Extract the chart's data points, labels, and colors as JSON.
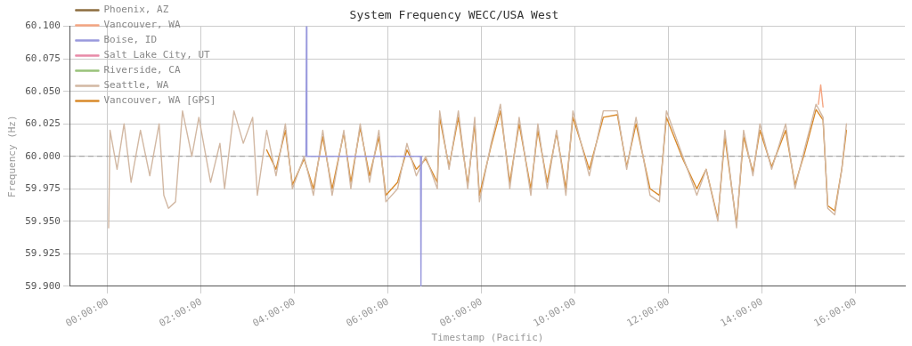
{
  "chart_data": {
    "type": "line",
    "title": "System Frequency WECC/USA West",
    "xlabel": "Timestamp (Pacific)",
    "ylabel": "Frequency (Hz)",
    "xlim": [
      -0.8,
      17.05
    ],
    "ylim": [
      59.9,
      60.1
    ],
    "xticks": [
      {
        "value": 0,
        "label": "00:00:00"
      },
      {
        "value": 2,
        "label": "02:00:00"
      },
      {
        "value": 4,
        "label": "04:00:00"
      },
      {
        "value": 6,
        "label": "06:00:00"
      },
      {
        "value": 8,
        "label": "08:00:00"
      },
      {
        "value": 10,
        "label": "10:00:00"
      },
      {
        "value": 12,
        "label": "12:00:00"
      },
      {
        "value": 14,
        "label": "14:00:00"
      },
      {
        "value": 16,
        "label": "16:00:00"
      }
    ],
    "yticks": [
      {
        "value": 59.9,
        "label": "59.900"
      },
      {
        "value": 59.925,
        "label": "59.925"
      },
      {
        "value": 59.95,
        "label": "59.950"
      },
      {
        "value": 59.975,
        "label": "59.975"
      },
      {
        "value": 60,
        "label": "60.000"
      },
      {
        "value": 60.025,
        "label": "60.025"
      },
      {
        "value": 60.05,
        "label": "60.050"
      },
      {
        "value": 60.075,
        "label": "60.075"
      },
      {
        "value": 60.1,
        "label": "60.100"
      }
    ],
    "grid": true,
    "legend": "top left",
    "marker": "none",
    "line_style": "solid",
    "ref_lines": [
      {
        "axis": "y",
        "value": 60,
        "color": "#999999",
        "line_style": "dashed"
      }
    ],
    "series": [
      {
        "name": "Phoenix, AZ",
        "color": "#8c6d3f"
      },
      {
        "name": "Vancouver, WA",
        "color": "#f4a582",
        "x": [
          15.2,
          15.25,
          15.3
        ],
        "values": [
          60.04,
          60.055,
          60.038
        ]
      },
      {
        "name": "Boise, ID",
        "color": "#9999dd",
        "x": [
          4.24,
          4.25,
          4.26,
          6.69,
          6.7,
          6.71
        ],
        "values": [
          60.0,
          60.1,
          60.0,
          60.0,
          59.9,
          60.0
        ]
      },
      {
        "name": "Salt Lake City, UT",
        "color": "#e88aa8"
      },
      {
        "name": "Riverside, CA",
        "color": "#99c27a"
      },
      {
        "name": "Seattle, WA",
        "color": "#d2b8a3",
        "x": [
          0.02,
          0.05,
          0.2,
          0.35,
          0.5,
          0.7,
          0.9,
          1.1,
          1.2,
          1.3,
          1.45,
          1.6,
          1.8,
          1.95,
          2.2,
          2.4,
          2.5,
          2.7,
          2.9,
          3.1,
          3.2,
          3.4,
          3.6,
          3.8,
          3.95,
          4.2,
          4.4,
          4.6,
          4.8,
          5.05,
          5.2,
          5.4,
          5.6,
          5.8,
          5.95,
          6.2,
          6.4,
          6.6,
          6.8,
          7.05,
          7.1,
          7.3,
          7.5,
          7.7,
          7.85,
          7.95,
          8.2,
          8.4,
          8.6,
          8.8,
          9.05,
          9.2,
          9.4,
          9.6,
          9.8,
          9.95,
          10.3,
          10.6,
          10.9,
          11.1,
          11.3,
          11.6,
          11.8,
          11.95,
          12.3,
          12.6,
          12.8,
          13.05,
          13.2,
          13.45,
          13.6,
          13.8,
          13.95,
          14.2,
          14.5,
          14.7,
          14.9,
          15.15,
          15.3,
          15.4,
          15.55,
          15.7,
          15.8
        ],
        "values": [
          59.945,
          60.02,
          59.99,
          60.025,
          59.98,
          60.02,
          59.985,
          60.025,
          59.97,
          59.96,
          59.965,
          60.035,
          60.0,
          60.03,
          59.98,
          60.01,
          59.975,
          60.035,
          60.01,
          60.03,
          59.97,
          60.02,
          59.985,
          60.025,
          59.975,
          60.0,
          59.97,
          60.02,
          59.97,
          60.02,
          59.975,
          60.025,
          59.98,
          60.02,
          59.965,
          59.975,
          60.01,
          59.985,
          60.0,
          59.975,
          60.035,
          59.99,
          60.035,
          59.975,
          60.03,
          59.965,
          60.01,
          60.04,
          59.975,
          60.03,
          59.97,
          60.025,
          59.975,
          60.02,
          59.97,
          60.035,
          59.985,
          60.035,
          60.035,
          59.99,
          60.03,
          59.97,
          59.965,
          60.035,
          60.0,
          59.97,
          59.99,
          59.95,
          60.02,
          59.945,
          60.02,
          59.985,
          60.025,
          59.99,
          60.025,
          59.975,
          60.005,
          60.04,
          60.03,
          59.96,
          59.955,
          59.99,
          60.025
        ]
      },
      {
        "name": "Vancouver, WA [GPS]",
        "color": "#d98a2b",
        "x": [
          3.4,
          3.6,
          3.8,
          3.95,
          4.2,
          4.4,
          4.6,
          4.8,
          5.05,
          5.2,
          5.4,
          5.6,
          5.8,
          5.95,
          6.2,
          6.4,
          6.6,
          6.8,
          7.05,
          7.1,
          7.3,
          7.5,
          7.7,
          7.85,
          7.95,
          8.2,
          8.4,
          8.6,
          8.8,
          9.05,
          9.2,
          9.4,
          9.6,
          9.8,
          9.95,
          10.3,
          10.6,
          10.9,
          11.1,
          11.3,
          11.6,
          11.8,
          11.95,
          12.3,
          12.6,
          12.8,
          13.05,
          13.2,
          13.45,
          13.6,
          13.8,
          13.95,
          14.2,
          14.5,
          14.7,
          14.9,
          15.15,
          15.3,
          15.4,
          15.55,
          15.7,
          15.8
        ],
        "values": [
          60.005,
          59.99,
          60.02,
          59.978,
          59.998,
          59.975,
          60.015,
          59.975,
          60.018,
          59.98,
          60.022,
          59.985,
          60.015,
          59.97,
          59.98,
          60.005,
          59.99,
          59.998,
          59.98,
          60.03,
          59.992,
          60.03,
          59.978,
          60.025,
          59.97,
          60.008,
          60.035,
          59.98,
          60.025,
          59.975,
          60.02,
          59.98,
          60.018,
          59.975,
          60.03,
          59.99,
          60.03,
          60.032,
          59.992,
          60.025,
          59.975,
          59.97,
          60.03,
          59.998,
          59.975,
          59.99,
          59.952,
          60.015,
          59.948,
          60.015,
          59.988,
          60.02,
          59.992,
          60.02,
          59.978,
          60.002,
          60.036,
          60.028,
          59.962,
          59.958,
          59.99,
          60.02
        ]
      }
    ]
  }
}
